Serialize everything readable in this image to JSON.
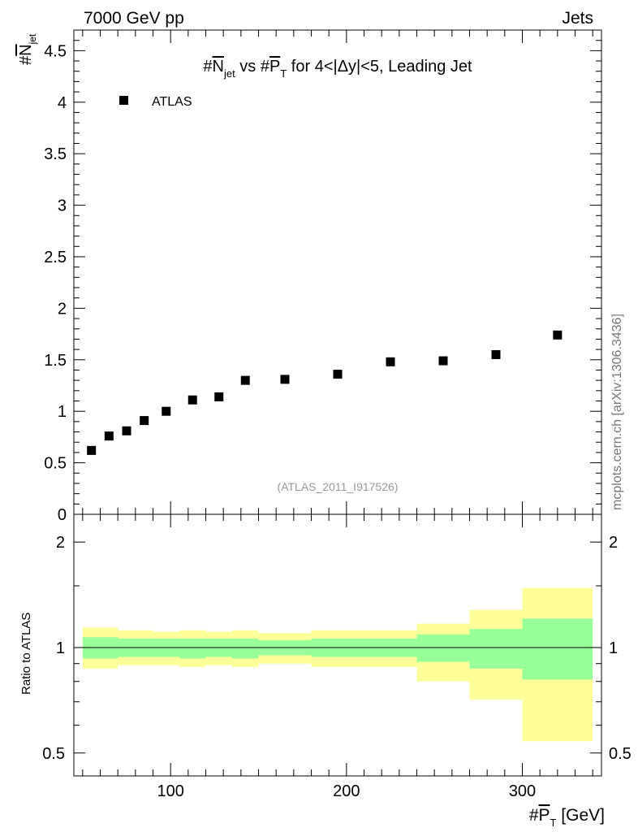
{
  "header": {
    "left": "7000 GeV pp",
    "right": "Jets"
  },
  "side_label": "mcplots.cern.ch [arXiv:1306.3436]",
  "analysis_id": "(ATLAS_2011_I917526)",
  "title": {
    "pre": "#",
    "n": "N",
    "n_sub": "jet",
    "mid": " vs #",
    "p": "P",
    "p_sub": "T",
    "post": " for 4<|Δy|<5, Leading Jet"
  },
  "ylabel_main": {
    "pre": "#",
    "n": "N",
    "n_sub": "jet"
  },
  "ylabel_ratio": "Ratio to ATLAS",
  "xlabel": {
    "pre": "#",
    "p": "P",
    "p_sub": "T",
    "unit": " [GeV]"
  },
  "legend": [
    {
      "label": "ATLAS",
      "marker": "square"
    }
  ],
  "colors": {
    "inner_band": "#99ff99",
    "outer_band": "#ffff99",
    "marker": "#000000",
    "refline": "#000000"
  },
  "chart_data": [
    {
      "type": "scatter",
      "title": "#N_jet vs #P_T for 4<|Δy|<5, Leading Jet",
      "xlabel": "#P_T [GeV]",
      "ylabel": "#N_jet",
      "xlim": [
        45,
        345
      ],
      "ylim": [
        0,
        4.7
      ],
      "yticks": [
        0,
        0.5,
        1,
        1.5,
        2,
        2.5,
        3,
        3.5,
        4,
        4.5
      ],
      "ytick_labels": [
        "0",
        "0.5",
        "1",
        "1.5",
        "2",
        "2.5",
        "3",
        "3.5",
        "4",
        "4.5"
      ],
      "series": [
        {
          "name": "ATLAS",
          "x": [
            55,
            65,
            75,
            85,
            97.5,
            112.5,
            127.5,
            142.5,
            165,
            195,
            225,
            255,
            285,
            320
          ],
          "y": [
            0.62,
            0.76,
            0.81,
            0.91,
            1.0,
            1.11,
            1.14,
            1.3,
            1.31,
            1.36,
            1.48,
            1.49,
            1.55,
            1.74
          ]
        }
      ]
    },
    {
      "type": "area",
      "ylabel": "Ratio to ATLAS",
      "ylim": [
        0.43,
        2.4
      ],
      "yscale": "log",
      "yticks": [
        0.5,
        1,
        2
      ],
      "ytick_labels": [
        "0.5",
        "1",
        "2"
      ],
      "xticks": [
        100,
        200,
        300
      ],
      "xtick_labels": [
        "100",
        "200",
        "300"
      ],
      "reference": 1,
      "bins": [
        {
          "lo": 50,
          "hi": 70,
          "inner": [
            0.93,
            1.07
          ],
          "outer": [
            0.87,
            1.14
          ]
        },
        {
          "lo": 70,
          "hi": 90,
          "inner": [
            0.94,
            1.06
          ],
          "outer": [
            0.89,
            1.12
          ]
        },
        {
          "lo": 90,
          "hi": 105,
          "inner": [
            0.94,
            1.06
          ],
          "outer": [
            0.89,
            1.11
          ]
        },
        {
          "lo": 105,
          "hi": 120,
          "inner": [
            0.93,
            1.06
          ],
          "outer": [
            0.88,
            1.12
          ]
        },
        {
          "lo": 120,
          "hi": 135,
          "inner": [
            0.94,
            1.06
          ],
          "outer": [
            0.89,
            1.11
          ]
        },
        {
          "lo": 135,
          "hi": 150,
          "inner": [
            0.93,
            1.06
          ],
          "outer": [
            0.88,
            1.12
          ]
        },
        {
          "lo": 150,
          "hi": 180,
          "inner": [
            0.95,
            1.05
          ],
          "outer": [
            0.9,
            1.1
          ]
        },
        {
          "lo": 180,
          "hi": 210,
          "inner": [
            0.94,
            1.06
          ],
          "outer": [
            0.88,
            1.12
          ]
        },
        {
          "lo": 210,
          "hi": 240,
          "inner": [
            0.94,
            1.06
          ],
          "outer": [
            0.88,
            1.12
          ]
        },
        {
          "lo": 240,
          "hi": 270,
          "inner": [
            0.91,
            1.09
          ],
          "outer": [
            0.8,
            1.17
          ]
        },
        {
          "lo": 270,
          "hi": 300,
          "inner": [
            0.87,
            1.13
          ],
          "outer": [
            0.71,
            1.28
          ]
        },
        {
          "lo": 300,
          "hi": 340,
          "inner": [
            0.81,
            1.21
          ],
          "outer": [
            0.54,
            1.48
          ]
        }
      ]
    }
  ]
}
